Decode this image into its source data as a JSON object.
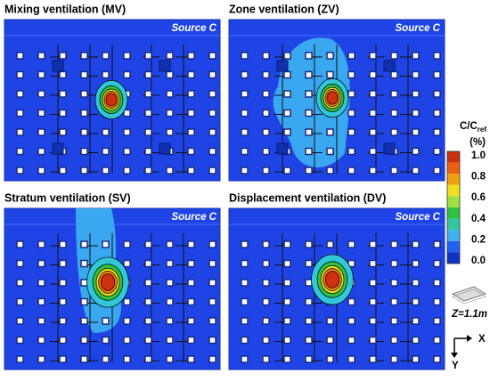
{
  "panels": [
    {
      "title": "Mixing ventilation (MV)",
      "source": "Source C"
    },
    {
      "title": "Zone ventilation (ZV)",
      "source": "Source C"
    },
    {
      "title": "Stratum ventilation (SV)",
      "source": "Source C"
    },
    {
      "title": "Displacement ventilation (DV)",
      "source": "Source C"
    }
  ],
  "colorbar": {
    "title": "C/C",
    "title_subscript": "ref",
    "unit": "(%)",
    "ticks": [
      "1.0",
      "0.8",
      "0.6",
      "0.4",
      "0.2",
      "0.0"
    ]
  },
  "height_label": "Z=1.1m",
  "axes": {
    "x": "X",
    "y": "Y"
  }
}
